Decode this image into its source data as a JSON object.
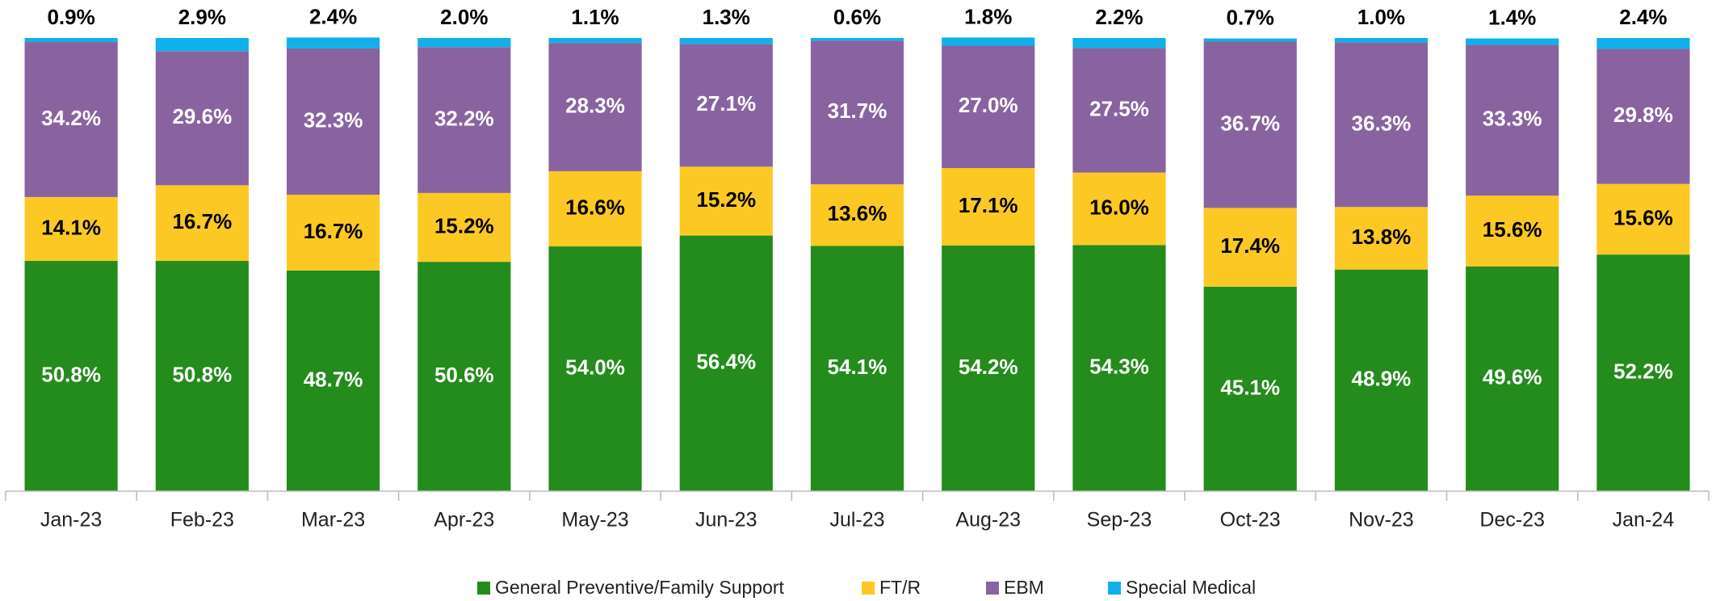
{
  "chart_data": {
    "type": "stacked_bar",
    "categories": [
      "Jan-23",
      "Feb-23",
      "Mar-23",
      "Apr-23",
      "May-23",
      "Jun-23",
      "Jul-23",
      "Aug-23",
      "Sep-23",
      "Oct-23",
      "Nov-23",
      "Dec-23",
      "Jan-24"
    ],
    "ylim": [
      0,
      100
    ],
    "series": [
      {
        "name": "General Preventive/Family Support",
        "color": "#248b1d",
        "label_color": "#ffffff",
        "label_position": "inside",
        "values": [
          50.8,
          50.8,
          48.7,
          50.6,
          54.0,
          56.4,
          54.1,
          54.2,
          54.3,
          45.1,
          48.9,
          49.6,
          52.2
        ],
        "value_labels": [
          "50.8%",
          "50.8%",
          "48.7%",
          "50.6%",
          "54.0%",
          "56.4%",
          "54.1%",
          "54.2%",
          "54.3%",
          "45.1%",
          "48.9%",
          "49.6%",
          "52.2%"
        ]
      },
      {
        "name": "FT/R",
        "color": "#fcc824",
        "label_color": "#000000",
        "label_position": "inside",
        "values": [
          14.1,
          16.7,
          16.7,
          15.2,
          16.6,
          15.2,
          13.6,
          17.1,
          16.0,
          17.4,
          13.8,
          15.6,
          15.6
        ],
        "value_labels": [
          "14.1%",
          "16.7%",
          "16.7%",
          "15.2%",
          "16.6%",
          "15.2%",
          "13.6%",
          "17.1%",
          "16.0%",
          "17.4%",
          "13.8%",
          "15.6%",
          "15.6%"
        ]
      },
      {
        "name": "EBM",
        "color": "#8963a0",
        "label_color": "#ffffff",
        "label_position": "inside",
        "values": [
          34.2,
          29.6,
          32.3,
          32.2,
          28.3,
          27.1,
          31.7,
          27.0,
          27.5,
          36.7,
          36.3,
          33.3,
          29.8
        ],
        "value_labels": [
          "34.2%",
          "29.6%",
          "32.3%",
          "32.2%",
          "28.3%",
          "27.1%",
          "31.7%",
          "27.0%",
          "27.5%",
          "36.7%",
          "36.3%",
          "33.3%",
          "29.8%"
        ]
      },
      {
        "name": "Special Medical",
        "color": "#10b0ec",
        "label_color": "#000000",
        "label_position": "above",
        "values": [
          0.9,
          2.9,
          2.4,
          2.0,
          1.1,
          1.3,
          0.6,
          1.8,
          2.2,
          0.7,
          1.0,
          1.4,
          2.4
        ],
        "value_labels": [
          "0.9%",
          "2.9%",
          "2.4%",
          "2.0%",
          "1.1%",
          "1.3%",
          "0.6%",
          "1.8%",
          "2.2%",
          "0.7%",
          "1.0%",
          "1.4%",
          "2.4%"
        ]
      }
    ],
    "legend": "bottom"
  }
}
